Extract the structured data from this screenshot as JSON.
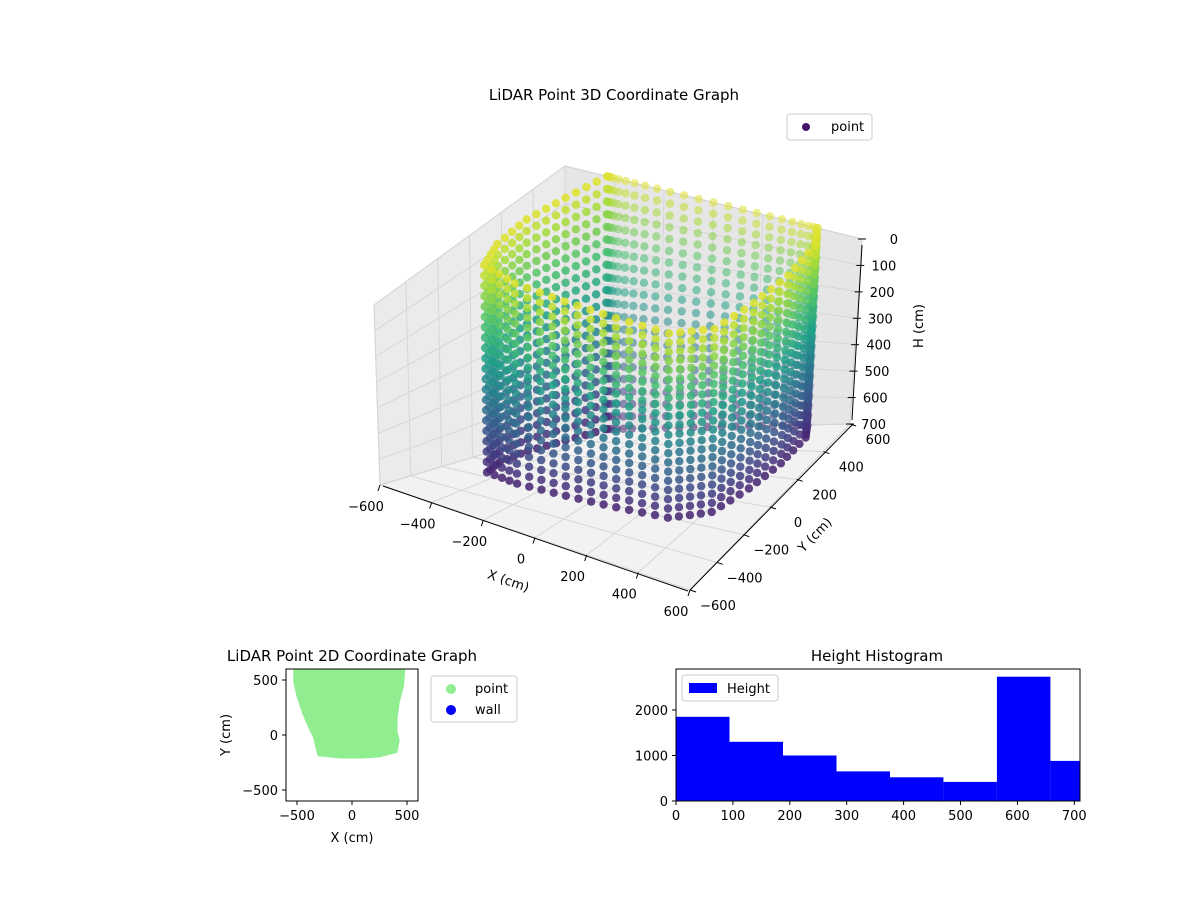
{
  "figure": {
    "background": "#ffffff"
  },
  "chart_data": [
    {
      "type": "scatter",
      "dimensions": 3,
      "title": "LiDAR Point 3D Coordinate Graph",
      "xlabel": "X (cm)",
      "ylabel": "Y (cm)",
      "zlabel": "H (cm)",
      "xlim": [
        -600,
        600
      ],
      "ylim": [
        -600,
        600
      ],
      "zlim": [
        0,
        700
      ],
      "z_axis_inverted": true,
      "xticks": [
        "−600",
        "−400",
        "−200",
        "0",
        "200",
        "400",
        "600"
      ],
      "yticks": [
        "−600",
        "−400",
        "−200",
        "0",
        "200",
        "400",
        "600"
      ],
      "zticks": [
        "0",
        "100",
        "200",
        "300",
        "400",
        "500",
        "600",
        "700"
      ],
      "colormap": "viridis",
      "legend": {
        "position": "top-right",
        "entries": [
          {
            "label": "point",
            "color": "#46166a"
          }
        ]
      },
      "grid": true,
      "data_shape": "roughly cylindrical wall of points, radius about 450 cm, heights 0–700 cm, colored by height",
      "outline": [
        {
          "x": -430,
          "y": 600
        },
        {
          "x": -470,
          "y": 400
        },
        {
          "x": -500,
          "y": 200
        },
        {
          "x": -490,
          "y": 0
        },
        {
          "x": -450,
          "y": -150
        },
        {
          "x": -300,
          "y": -200
        },
        {
          "x": -100,
          "y": -210
        },
        {
          "x": 100,
          "y": -210
        },
        {
          "x": 300,
          "y": -200
        },
        {
          "x": 420,
          "y": -100
        },
        {
          "x": 460,
          "y": 100
        },
        {
          "x": 480,
          "y": 300
        },
        {
          "x": 470,
          "y": 500
        },
        {
          "x": 420,
          "y": 600
        }
      ],
      "height_range": [
        0,
        700
      ]
    },
    {
      "type": "scatter",
      "dimensions": 2,
      "title": "LiDAR Point 2D Coordinate Graph",
      "xlabel": "X (cm)",
      "ylabel": "Y (cm)",
      "xlim": [
        -600,
        600
      ],
      "ylim": [
        -600,
        600
      ],
      "xticks": [
        -500,
        0,
        500
      ],
      "yticks": [
        -500,
        0,
        500
      ],
      "legend": {
        "position": "outside-right",
        "entries": [
          {
            "label": "point",
            "color": "#90ee90"
          },
          {
            "label": "wall",
            "color": "#0000ff"
          }
        ]
      },
      "point_region": [
        {
          "x": -520,
          "y": 600
        },
        {
          "x": -520,
          "y": 480
        },
        {
          "x": -490,
          "y": 350
        },
        {
          "x": -440,
          "y": 200
        },
        {
          "x": -380,
          "y": 60
        },
        {
          "x": -340,
          "y": -20
        },
        {
          "x": -320,
          "y": -110
        },
        {
          "x": -300,
          "y": -180
        },
        {
          "x": -100,
          "y": -200
        },
        {
          "x": 100,
          "y": -200
        },
        {
          "x": 250,
          "y": -190
        },
        {
          "x": 400,
          "y": -150
        },
        {
          "x": 420,
          "y": -50
        },
        {
          "x": 400,
          "y": 30
        },
        {
          "x": 400,
          "y": 150
        },
        {
          "x": 420,
          "y": 300
        },
        {
          "x": 460,
          "y": 450
        },
        {
          "x": 470,
          "y": 600
        }
      ]
    },
    {
      "type": "bar",
      "subtype": "histogram",
      "title": "Height Histogram",
      "xlim": [
        0,
        710
      ],
      "ylim": [
        0,
        2900
      ],
      "xticks": [
        0,
        100,
        200,
        300,
        400,
        500,
        600,
        700
      ],
      "yticks": [
        0,
        1000,
        2000
      ],
      "bin_edges": [
        0,
        94,
        188,
        282,
        376,
        470,
        564,
        658,
        710
      ],
      "values": [
        1850,
        1300,
        1000,
        650,
        520,
        420,
        2730,
        880
      ],
      "series": [
        {
          "name": "Height",
          "color": "#0000ff"
        }
      ],
      "legend": {
        "position": "top-left",
        "entries": [
          {
            "label": "Height",
            "color": "#0000ff"
          }
        ]
      }
    }
  ]
}
